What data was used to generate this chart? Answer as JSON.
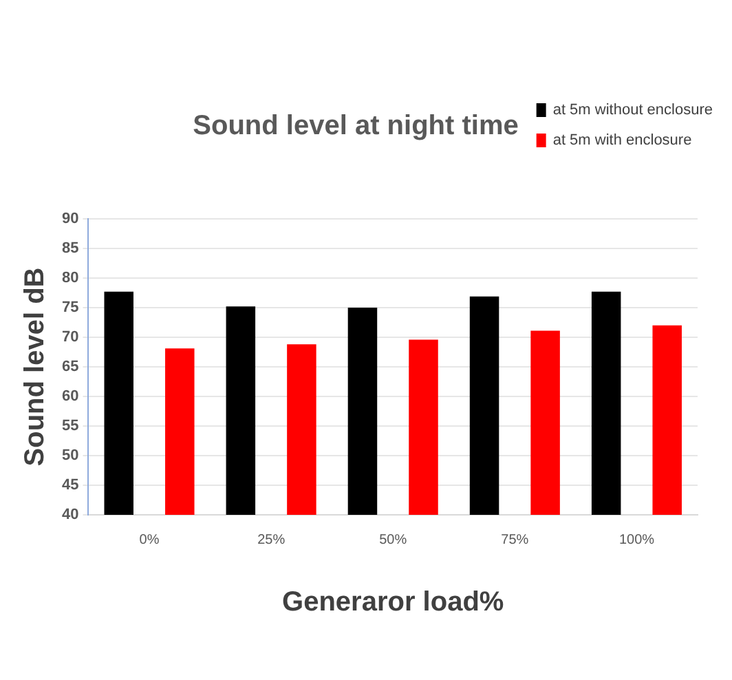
{
  "chart_data": {
    "type": "bar",
    "title": "Sound level at night time",
    "xlabel": "Generaror load%",
    "ylabel": "Sound level dB",
    "categories": [
      "0%",
      "25%",
      "50%",
      "75%",
      "100%"
    ],
    "series": [
      {
        "name": "at 5m without enclosure",
        "color": "#000000",
        "values": [
          77.7,
          75.2,
          75.0,
          76.9,
          77.7
        ]
      },
      {
        "name": "at 5m with enclosure",
        "color": "#ff0000",
        "values": [
          68.1,
          68.8,
          69.6,
          71.1,
          72.0
        ]
      }
    ],
    "ylim": [
      40,
      90
    ],
    "yticks": [
      40,
      45,
      50,
      55,
      60,
      65,
      70,
      75,
      80,
      85,
      90
    ],
    "grid": "y",
    "legend": "top right"
  }
}
